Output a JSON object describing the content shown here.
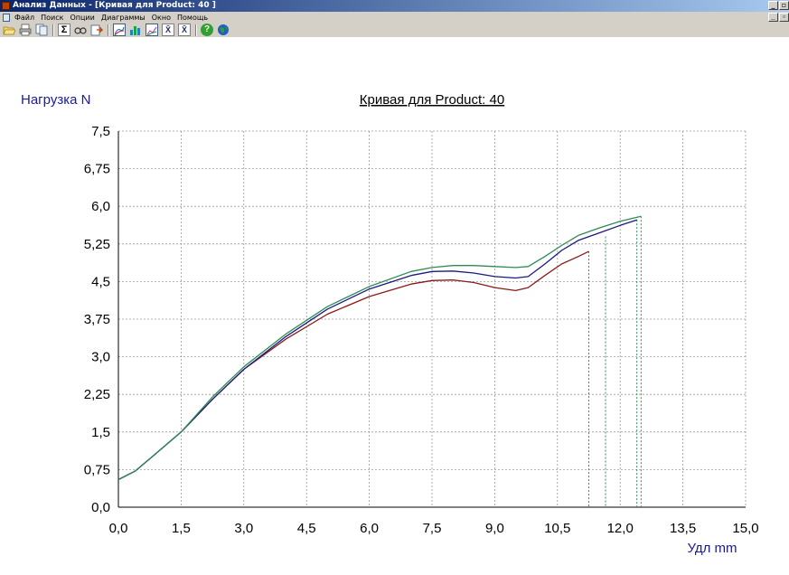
{
  "window": {
    "title": "Анализ Данных - [Кривая для Product: 40 ]",
    "min_label": "_",
    "restore_label": "▫",
    "close_label": "×"
  },
  "menu": {
    "items": [
      "Файл",
      "Поиск",
      "Опции",
      "Диаграммы",
      "Окно",
      "Помощь"
    ]
  },
  "toolbar": {
    "icons": [
      "open-folder-icon",
      "print-icon",
      "copy-icon",
      "sum-icon",
      "glasses-icon",
      "export-icon",
      "curve-chart-icon",
      "bar-chart-icon",
      "line-chart-icon",
      "x-mean-icon",
      "x-stat-icon",
      "help-icon",
      "globe-icon"
    ],
    "sum_glyph": "Σ",
    "xbar_glyph": "X̄",
    "help_glyph": "?"
  },
  "chart_data": {
    "type": "line",
    "title": "Кривая для Product: 40",
    "ylabel": "Нагрузка  N",
    "xlabel": "Удл  mm",
    "xlim": [
      0,
      15
    ],
    "ylim": [
      0,
      7.5
    ],
    "x_ticks": [
      "0,0",
      "1,5",
      "3,0",
      "4,5",
      "6,0",
      "7,5",
      "9,0",
      "10,5",
      "12,0",
      "13,5",
      "15,0"
    ],
    "y_ticks": [
      "0,0",
      "0,75",
      "1,5",
      "2,25",
      "3,0",
      "3,75",
      "4,5",
      "5,25",
      "6,0",
      "6,75",
      "7,5"
    ],
    "grid": true,
    "series": [
      {
        "color": "#8b1a1a",
        "x": [
          0,
          0.4,
          0.8,
          1.5,
          2.25,
          3.0,
          4.0,
          5.0,
          6.0,
          7.0,
          7.5,
          8.0,
          8.5,
          9.0,
          9.5,
          9.8,
          10.2,
          10.6,
          11.0,
          11.25
        ],
        "y": [
          0.55,
          0.72,
          1.0,
          1.5,
          2.15,
          2.75,
          3.35,
          3.85,
          4.2,
          4.45,
          4.52,
          4.53,
          4.48,
          4.38,
          4.32,
          4.38,
          4.62,
          4.85,
          5.0,
          5.1
        ]
      },
      {
        "color": "#1a1a80",
        "x": [
          0,
          0.4,
          0.8,
          1.5,
          2.25,
          3.0,
          4.0,
          5.0,
          6.0,
          7.0,
          7.5,
          8.0,
          8.5,
          9.0,
          9.5,
          9.8,
          10.2,
          10.6,
          11.0,
          11.5,
          12.0,
          12.4
        ],
        "y": [
          0.55,
          0.72,
          1.0,
          1.5,
          2.15,
          2.75,
          3.4,
          3.95,
          4.35,
          4.62,
          4.7,
          4.71,
          4.67,
          4.6,
          4.57,
          4.6,
          4.85,
          5.12,
          5.32,
          5.47,
          5.62,
          5.73
        ]
      },
      {
        "color": "#2e8b57",
        "x": [
          0,
          0.4,
          0.8,
          1.5,
          2.25,
          3.0,
          4.0,
          5.0,
          6.0,
          7.0,
          7.5,
          8.0,
          8.5,
          9.0,
          9.5,
          9.8,
          10.2,
          10.6,
          11.0,
          11.5,
          12.0,
          12.5
        ],
        "y": [
          0.55,
          0.72,
          1.0,
          1.5,
          2.2,
          2.8,
          3.45,
          4.0,
          4.4,
          4.7,
          4.78,
          4.82,
          4.82,
          4.8,
          4.78,
          4.8,
          5.0,
          5.22,
          5.42,
          5.57,
          5.7,
          5.8
        ]
      }
    ],
    "break_lines": [
      {
        "x": 11.25,
        "y": 5.1
      },
      {
        "x": 11.65,
        "y": 5.4
      },
      {
        "x": 12.4,
        "y": 5.73
      },
      {
        "x": 12.5,
        "y": 5.8
      }
    ]
  }
}
